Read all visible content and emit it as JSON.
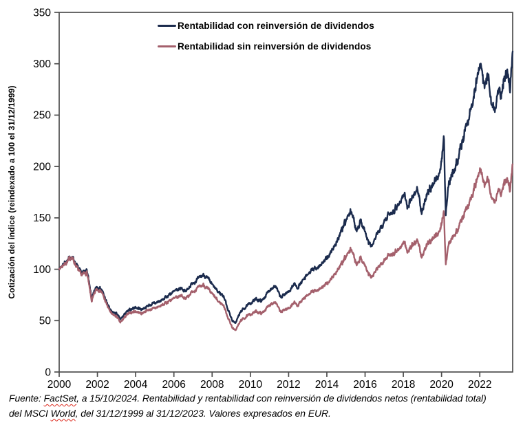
{
  "page": {
    "background": "#ffffff",
    "axis_color": "#4d4d4d",
    "text_color": "#000000"
  },
  "y_axis_title": "Cotización del índice (reindexado a 100 el 31/12/1999)",
  "footer": {
    "line1_pre": "Fuente: ",
    "line1_brand": "FactSet",
    "line1_post": ", a 15/10/2024. Rentabilidad y rentabilidad con reinversión de dividendos netos (rentabilidad total)",
    "line2_pre": "del MSCI ",
    "line2_brand": "World",
    "line2_post": ", del 31/12/1999 al 31/12/2023. Valores expresados en EUR."
  },
  "chart_data": {
    "type": "line",
    "title": "",
    "xlabel": "",
    "ylabel": "Cotización del índice (reindexado a 100 el 31/12/1999)",
    "x_range": [
      2000,
      2023.72
    ],
    "ylim": [
      0,
      350
    ],
    "x_ticks": [
      2000,
      2002,
      2004,
      2006,
      2008,
      2010,
      2012,
      2014,
      2016,
      2018,
      2020,
      2022
    ],
    "y_ticks": [
      0,
      50,
      100,
      150,
      200,
      250,
      300,
      350
    ],
    "grid": false,
    "legend_position": "top-inside",
    "axis_color": "#4d4d4d",
    "x": [
      2000.0,
      2000.25,
      2000.45,
      2000.65,
      2000.9,
      2001.15,
      2001.45,
      2001.7,
      2001.95,
      2002.2,
      2002.5,
      2002.75,
      2003.0,
      2003.2,
      2003.5,
      2003.75,
      2004.0,
      2004.3,
      2004.6,
      2005.0,
      2005.4,
      2005.8,
      2006.1,
      2006.4,
      2006.6,
      2007.0,
      2007.3,
      2007.55,
      2007.8,
      2008.0,
      2008.3,
      2008.6,
      2008.85,
      2009.04,
      2009.2,
      2009.5,
      2009.8,
      2010.0,
      2010.3,
      2010.6,
      2010.9,
      2011.1,
      2011.3,
      2011.6,
      2011.8,
      2012.0,
      2012.3,
      2012.45,
      2012.8,
      2013.15,
      2013.5,
      2013.9,
      2014.2,
      2014.6,
      2015.0,
      2015.28,
      2015.55,
      2015.75,
      2015.95,
      2016.15,
      2016.35,
      2016.7,
      2017.0,
      2017.4,
      2017.8,
      2018.05,
      2018.2,
      2018.5,
      2018.75,
      2018.95,
      2019.1,
      2019.4,
      2019.7,
      2019.95,
      2020.12,
      2020.22,
      2020.35,
      2020.6,
      2020.85,
      2021.1,
      2021.4,
      2021.7,
      2021.95,
      2022.05,
      2022.25,
      2022.45,
      2022.6,
      2022.78,
      2022.95,
      2023.1,
      2023.3,
      2023.45,
      2023.58,
      2023.72
    ],
    "series": [
      {
        "name": "Rentabilidad con reinversión de dividendos",
        "color": "#1b2b4d",
        "values": [
          100,
          106,
          109,
          113,
          105,
          96,
          99,
          71,
          83,
          81,
          67,
          58,
          57,
          51,
          58,
          61,
          63,
          61,
          64,
          67,
          70,
          76,
          79,
          82,
          78,
          87,
          91,
          95,
          90,
          85,
          78,
          74,
          60,
          51,
          47,
          59,
          64,
          67,
          71,
          69,
          77,
          82,
          84,
          72,
          76,
          78,
          86,
          82,
          90,
          98,
          102,
          108,
          116,
          130,
          147,
          157,
          138,
          147,
          140,
          127,
          122,
          136,
          148,
          156,
          164,
          174,
          161,
          171,
          179,
          154,
          164,
          179,
          187,
          197,
          230,
          152,
          181,
          196,
          207,
          226,
          246,
          270,
          293,
          300,
          277,
          289,
          263,
          255,
          272,
          268,
          285,
          292,
          278,
          312
        ]
      },
      {
        "name": "Rentabilidad sin reinversión de dividendos",
        "color": "#a4606c",
        "values": [
          100,
          105,
          108,
          112,
          103,
          94,
          97,
          69,
          81,
          79,
          65,
          56,
          54,
          48,
          55,
          58,
          59,
          57,
          60,
          62,
          65,
          70,
          72,
          75,
          71,
          79,
          82,
          85,
          80,
          76,
          69,
          65,
          52,
          44,
          40,
          50,
          54,
          56,
          59,
          57,
          63,
          67,
          68,
          58,
          61,
          62,
          68,
          65,
          71,
          77,
          80,
          84,
          90,
          100,
          112,
          120,
          105,
          111,
          106,
          96,
          92,
          102,
          110,
          115,
          120,
          127,
          117,
          124,
          129,
          111,
          118,
          128,
          133,
          139,
          157,
          104,
          123,
          133,
          139,
          151,
          163,
          178,
          192,
          197,
          181,
          188,
          171,
          165,
          176,
          173,
          184,
          188,
          179,
          202
        ]
      }
    ]
  }
}
